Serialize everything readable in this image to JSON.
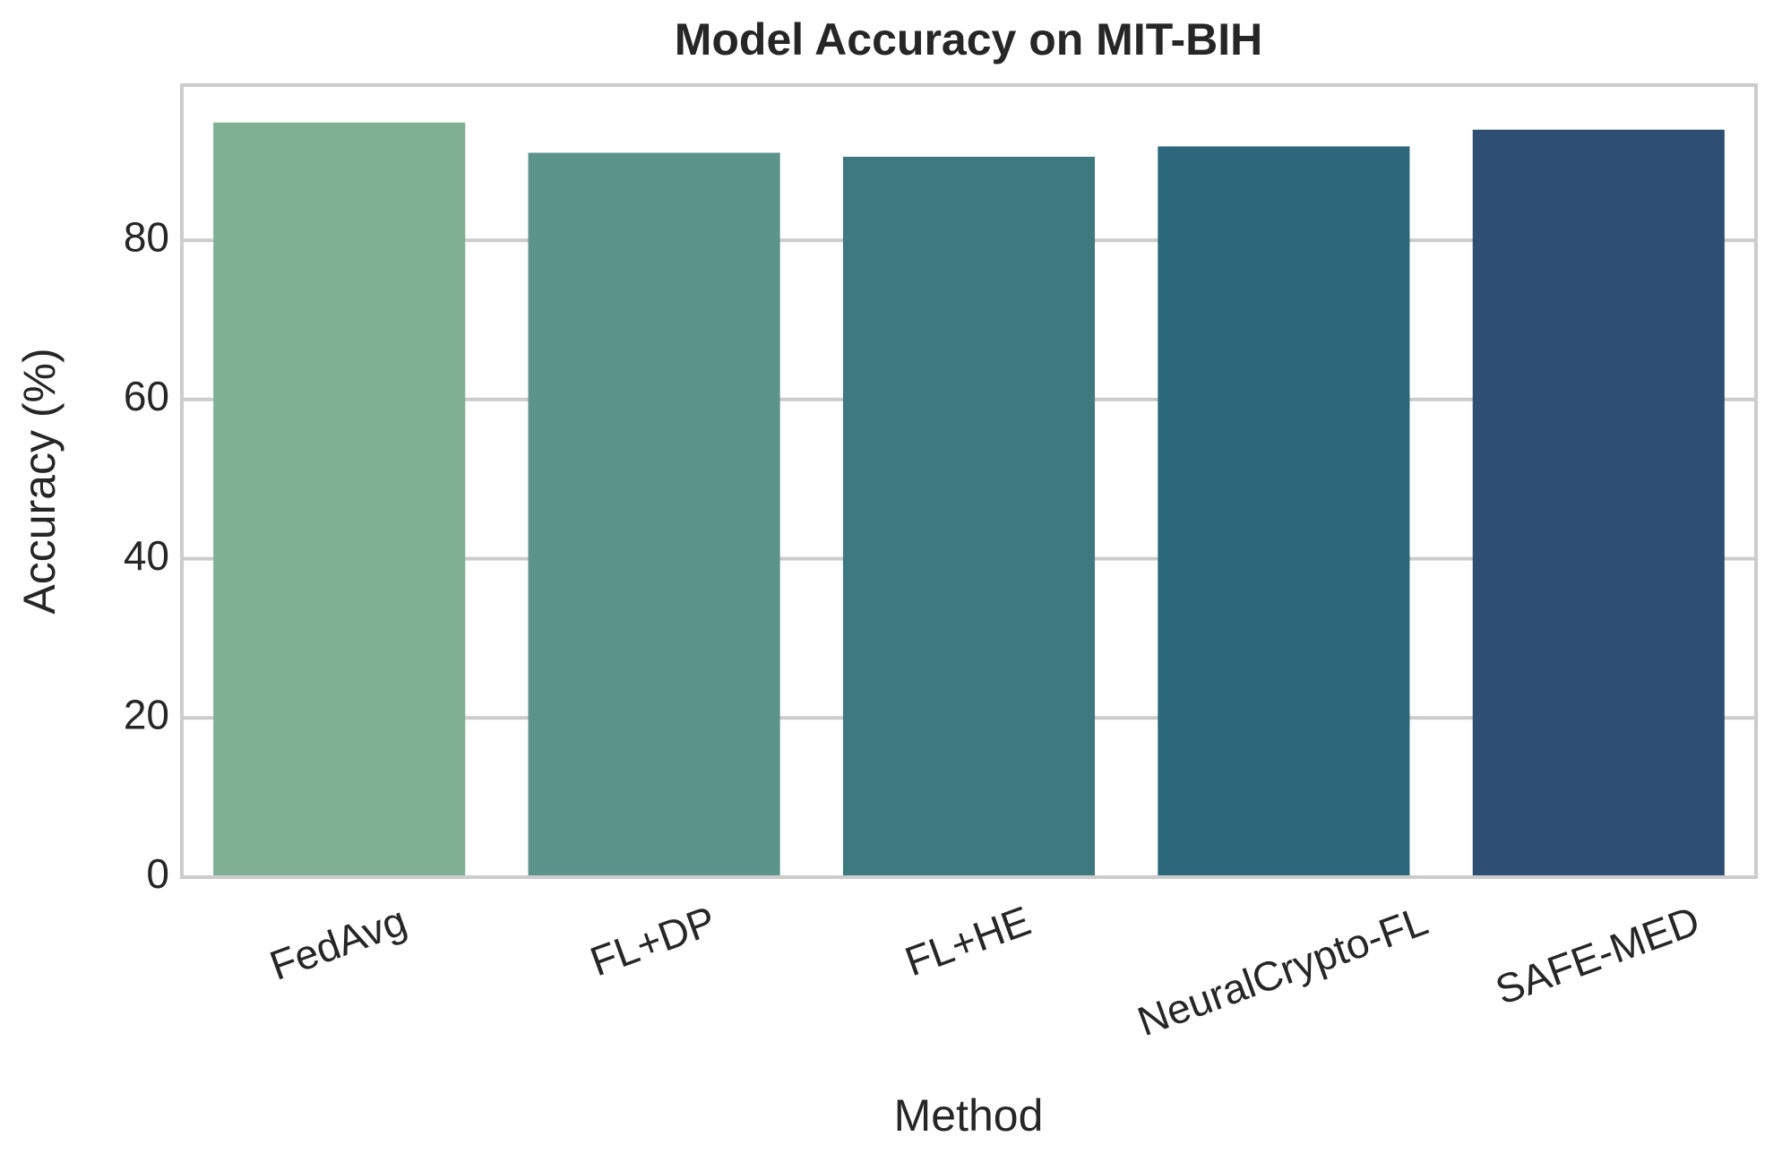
{
  "chart_data": {
    "type": "bar",
    "title": "Model Accuracy on MIT-BIH",
    "x_label": "Method",
    "y_label": "Accuracy (%)",
    "categories": [
      "FedAvg",
      "FL+DP",
      "FL+HE",
      "NeuralCrypto-FL",
      "SAFE-MED"
    ],
    "values": [
      94.8,
      91.0,
      90.5,
      91.8,
      93.9
    ],
    "colors": [
      "#7fb093",
      "#5c948b",
      "#3f7980",
      "#2c677b",
      "#2e4f73"
    ],
    "ylim": [
      0,
      99.5
    ],
    "yticks": [
      0,
      20,
      40,
      60,
      80
    ],
    "grid": true
  }
}
